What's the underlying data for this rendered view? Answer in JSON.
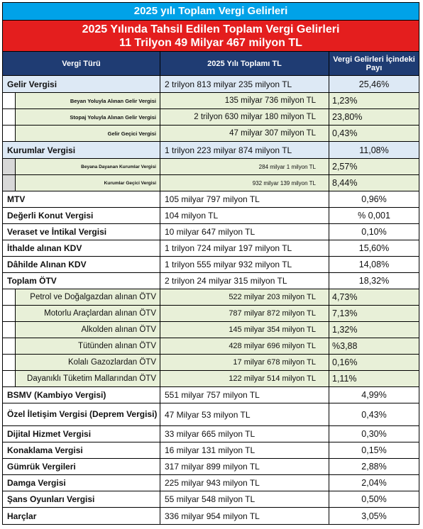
{
  "title": "2025 yılı Toplam Vergi Gelirleri",
  "subtitle_line1": "2025 Yılında Tahsil Edilen Toplam Vergi Gelirleri",
  "subtitle_line2": "11 Trilyon 49 Milyar 467 milyon TL",
  "headers": {
    "type": "Vergi Türü",
    "total": "2025 Yılı Toplamı TL",
    "share": "Vergi Gelirleri İçindeki Payı"
  },
  "rows": [
    {
      "label": "Gelir Vergisi",
      "value": "2 trilyon 813 milyar 235 milyon TL",
      "share": "25,46%"
    },
    {
      "label": "Beyan Yoluyla Alınan Gelir Vergisi",
      "value": "135 milyar 736 milyon TL",
      "share": "1,23%"
    },
    {
      "label": "Stopaj Yoluyla Alınan Gelir Vergisi",
      "value": "2 trilyon 630 milyar 180 milyon TL",
      "share": "23,80%"
    },
    {
      "label": "Gelir Geçici Vergisi",
      "value": "47 milyar 307 milyon TL",
      "share": "0,43%"
    },
    {
      "label": "Kurumlar Vergisi",
      "value": "1 trilyon 223 milyar 874 milyon TL",
      "share": "11,08%"
    },
    {
      "label": "Beyana Dayanan Kurumlar Vergisi",
      "value": "284 milyar 1 milyon TL",
      "share": "2,57%"
    },
    {
      "label": "Kurumlar Geçici Vergisi",
      "value": "932 milyar 139 milyon TL",
      "share": "8,44%"
    },
    {
      "label": "MTV",
      "value": "105 milyar 797 milyon TL",
      "share": "0,96%"
    },
    {
      "label": "Değerli Konut Vergisi",
      "value": "104 milyon TL",
      "share": "% 0,001"
    },
    {
      "label": "Veraset ve İntikal Vergisi",
      "value": "10 milyar 647 milyon TL",
      "share": "0,10%"
    },
    {
      "label": "İthalde alınan KDV",
      "value": "1 trilyon 724 milyar 197 milyon TL",
      "share": "15,60%"
    },
    {
      "label": "Dâhilde Alınan KDV",
      "value": "1 trilyon 555 milyar 932 milyon TL",
      "share": "14,08%"
    },
    {
      "label": "Toplam ÖTV",
      "value": "2 trilyon 24 milyar 315 milyon TL",
      "share": "18,32%"
    },
    {
      "label": "Petrol ve Doğalgazdan alınan ÖTV",
      "value": "522 milyar 203 milyon TL",
      "share": "4,73%"
    },
    {
      "label": "Motorlu Araçlardan alınan ÖTV",
      "value": "787 milyar 872 milyon TL",
      "share": "7,13%"
    },
    {
      "label": "Alkolden alınan ÖTV",
      "value": "145 milyar 354 milyon TL",
      "share": "1,32%"
    },
    {
      "label": "Tütünden alınan ÖTV",
      "value": "428 milyar 696 milyon TL",
      "share": "%3,88"
    },
    {
      "label": "Kolalı Gazozlardan ÖTV",
      "value": "17 milyar 678 milyon TL",
      "share": "0,16%"
    },
    {
      "label": "Dayanıklı Tüketim Mallarından ÖTV",
      "value": "122 milyar 514 milyon TL",
      "share": "1,11%"
    },
    {
      "label": "BSMV (Kambiyo Vergisi)",
      "value": "551 milyar 757 milyon TL",
      "share": "4,99%"
    },
    {
      "label": "Özel İletişim Vergisi (Deprem Vergisi)",
      "value": "47 Milyar 53 milyon TL",
      "share": "0,43%"
    },
    {
      "label": "Dijital Hizmet Vergisi",
      "value": "33 milyar 665 milyon TL",
      "share": "0,30%"
    },
    {
      "label": "Konaklama Vergisi",
      "value": "16 milyar 131 milyon TL",
      "share": "0,15%"
    },
    {
      "label": "Gümrük Vergileri",
      "value": "317 milyar 899 milyon TL",
      "share": "2,88%"
    },
    {
      "label": "Damga Vergisi",
      "value": "225 milyar 943 milyon TL",
      "share": "2,04%"
    },
    {
      "label": "Şans Oyunları Vergisi",
      "value": "55 milyar 548 milyon TL",
      "share": "0,50%"
    },
    {
      "label": "Harçlar",
      "value": "336 milyar 954 milyon TL",
      "share": "3,05%"
    }
  ]
}
